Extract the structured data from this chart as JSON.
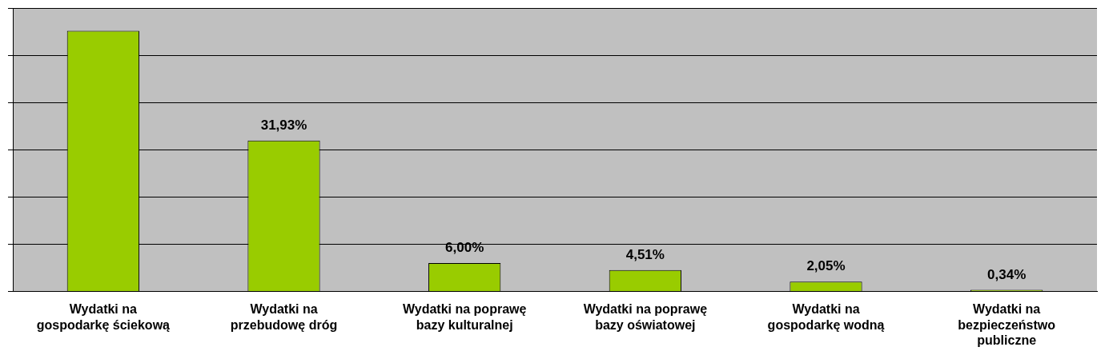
{
  "chart_data": {
    "type": "bar",
    "categories": [
      "Wydatki na gospodarkę ściekową",
      "Wydatki na przebudowę dróg",
      "Wydatki na poprawę bazy kulturalnej",
      "Wydatki na poprawę bazy oświatowej",
      "Wydatki na gospodarkę wodną",
      "Wydatki na bezpieczeństwo publiczne"
    ],
    "values": [
      55.17,
      31.93,
      6.0,
      4.51,
      2.05,
      0.34
    ],
    "value_labels": [
      null,
      "31,93%",
      "6,00%",
      "4,51%",
      "2,05%",
      "0,34%"
    ],
    "color": "#99cc00",
    "grid": "y",
    "tick_labels": "x"
  }
}
